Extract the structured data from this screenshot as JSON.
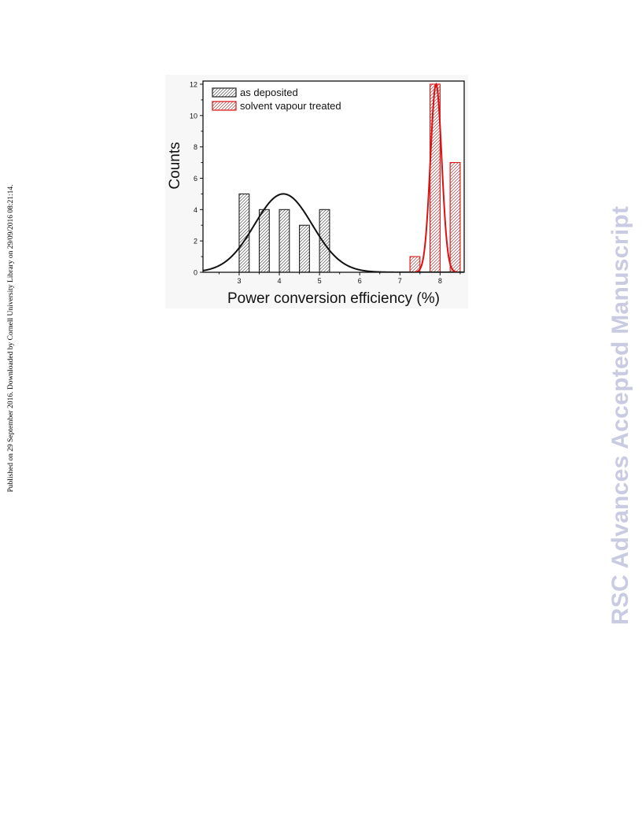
{
  "side_note": "Published on 29 September 2016. Downloaded by Cornell University Library on 29/09/2016 08:21:14.",
  "watermark": "RSC Advances Accepted Manuscript",
  "chart_data": {
    "type": "bar",
    "title": "",
    "xlabel": "Power conversion efficiency (%)",
    "ylabel": "Counts",
    "xlim": [
      2.1,
      8.6
    ],
    "ylim": [
      0,
      12.2
    ],
    "xticks": [
      3,
      4,
      5,
      6,
      7,
      8
    ],
    "yticks": [
      0,
      2,
      4,
      6,
      8,
      10,
      12
    ],
    "grid": false,
    "legend_position": "top-left",
    "colors": {
      "as_deposited": "#222222",
      "solvent_vapour_treated": "#dd1111"
    },
    "series": [
      {
        "name": "as deposited",
        "bins": [
          {
            "from": 3.0,
            "to": 3.25,
            "count": 5
          },
          {
            "from": 3.5,
            "to": 3.75,
            "count": 4
          },
          {
            "from": 4.0,
            "to": 4.25,
            "count": 4
          },
          {
            "from": 4.5,
            "to": 4.75,
            "count": 3
          },
          {
            "from": 5.0,
            "to": 5.25,
            "count": 4
          }
        ],
        "fit": {
          "type": "gaussian",
          "center": 4.1,
          "sigma": 0.72,
          "amplitude": 5
        }
      },
      {
        "name": "solvent vapour treated",
        "bins": [
          {
            "from": 7.25,
            "to": 7.5,
            "count": 1
          },
          {
            "from": 7.75,
            "to": 8.0,
            "count": 12
          },
          {
            "from": 8.25,
            "to": 8.5,
            "count": 7
          }
        ],
        "fit": {
          "type": "gaussian",
          "center": 7.9,
          "sigma": 0.14,
          "amplitude": 12
        }
      }
    ]
  }
}
